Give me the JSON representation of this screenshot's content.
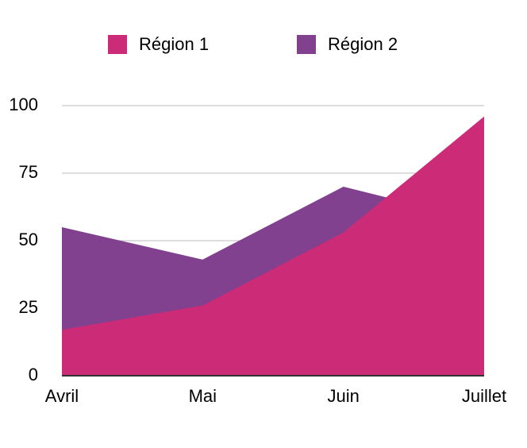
{
  "chart_data": {
    "type": "area",
    "categories": [
      "Avril",
      "Mai",
      "Juin",
      "Juillet"
    ],
    "series": [
      {
        "name": "Région 1",
        "color": "#cc2b77",
        "values": [
          17,
          26,
          53,
          96
        ]
      },
      {
        "name": "Région 2",
        "color": "#82418f",
        "values": [
          55,
          43,
          70,
          57
        ]
      }
    ],
    "ylim": [
      0,
      100
    ],
    "yticks": [
      0,
      25,
      50,
      75,
      100
    ],
    "grid": true,
    "legend": "top"
  }
}
